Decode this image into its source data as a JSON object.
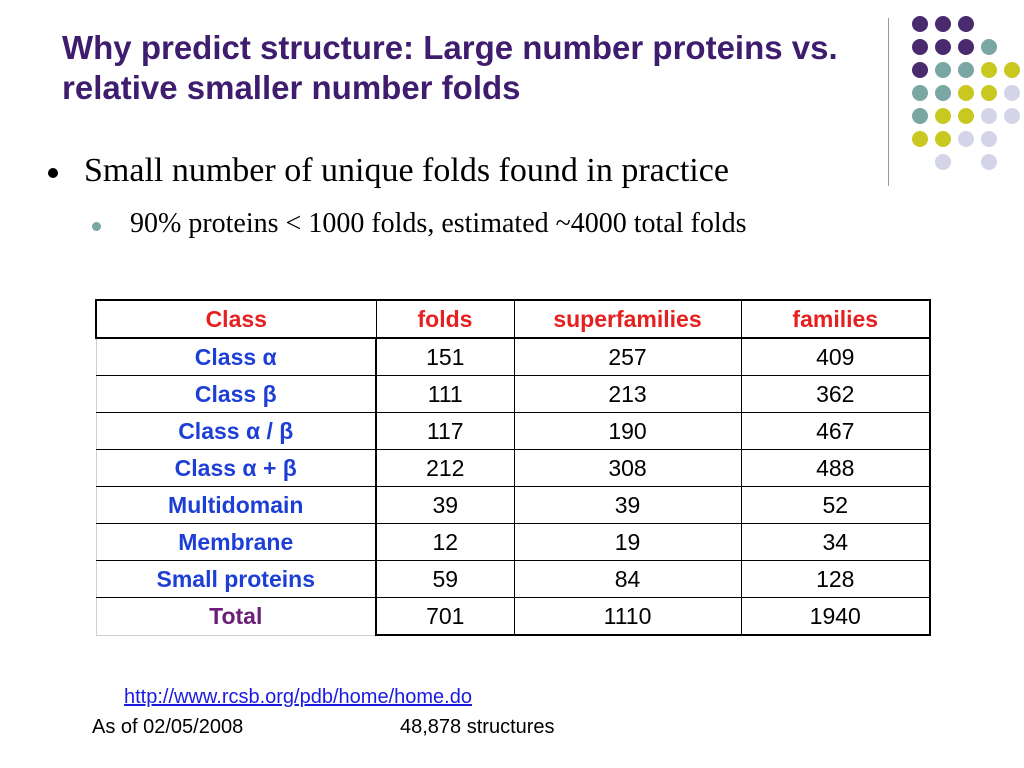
{
  "title": "Why predict structure: Large number proteins vs. relative smaller number folds",
  "bullets": {
    "level1": "Small number of unique folds found in practice",
    "level2": "90% proteins < 1000 folds, estimated ~4000 total folds"
  },
  "table": {
    "headers": [
      "Class",
      "folds",
      "superfamilies",
      "families"
    ],
    "rows": [
      [
        "Class α",
        "151",
        "257",
        "409"
      ],
      [
        "Class β",
        "111",
        "213",
        "362"
      ],
      [
        "Class α / β",
        "117",
        "190",
        "467"
      ],
      [
        "Class α + β",
        "212",
        "308",
        "488"
      ],
      [
        "Multidomain",
        "39",
        "39",
        "52"
      ],
      [
        "Membrane",
        "12",
        "19",
        "34"
      ],
      [
        "Small proteins",
        "59",
        "84",
        "128"
      ],
      [
        "Total",
        "701",
        "1110",
        "1940"
      ]
    ]
  },
  "footer": {
    "link": "http://www.rcsb.org/pdb/home/home.do",
    "date": "As of 02/05/2008",
    "structures": "48,878 structures"
  },
  "colors": {
    "title": "#3f1d6e",
    "header_text": "#e52020",
    "class_text": "#1d3fd6",
    "total_text": "#6a1e76",
    "dot_purple": "#4a2a6e",
    "dot_teal": "#7aa6a4",
    "dot_yellow": "#c9c821",
    "dot_lavender": "#d4d4e8"
  },
  "decoration": {
    "dot_grid": [
      [
        "purple",
        "purple",
        "purple",
        "",
        ""
      ],
      [
        "purple",
        "purple",
        "purple",
        "teal",
        ""
      ],
      [
        "purple",
        "teal",
        "teal",
        "yellow",
        "yellow"
      ],
      [
        "teal",
        "teal",
        "yellow",
        "yellow",
        "lavender"
      ],
      [
        "teal",
        "yellow",
        "yellow",
        "lavender",
        "lavender"
      ],
      [
        "yellow",
        "yellow",
        "lavender",
        "lavender",
        ""
      ],
      [
        "",
        "lavender",
        "",
        "lavender",
        ""
      ]
    ]
  }
}
